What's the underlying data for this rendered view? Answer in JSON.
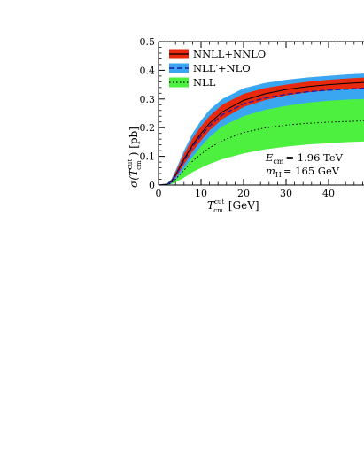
{
  "chart_data": {
    "type": "line",
    "title": "",
    "xlabel": "T_cm^cut [GeV]",
    "xlabel_parts": {
      "symbol": "T",
      "sub": "cm",
      "sup": "cut",
      "unit": "[GeV]"
    },
    "ylabel": "σ(T_cm^cut) [pb]",
    "ylabel_parts": {
      "prefix": "σ(",
      "symbol": "T",
      "sub": "cm",
      "sup": "cut",
      "suffix": ") [pb]"
    },
    "xlim": [
      0,
      49
    ],
    "ylim": [
      0,
      0.5
    ],
    "x_ticks": [
      0,
      10,
      20,
      30,
      40
    ],
    "x_tick_labels": [
      "0",
      "10",
      "20",
      "30",
      "40"
    ],
    "y_ticks": [
      0,
      0.1,
      0.2,
      0.3,
      0.4,
      0.5
    ],
    "y_tick_labels": [
      "0",
      "0.1",
      "0.2",
      "0.3",
      "0.4",
      "0.5"
    ],
    "grid": false,
    "legend_position": "top-left",
    "x": [
      0,
      2,
      3,
      4,
      5,
      6,
      8,
      10,
      12,
      15,
      20,
      25,
      30,
      35,
      40,
      45,
      49
    ],
    "series": [
      {
        "name": "NNLL+NNLO",
        "color": "#e8290e",
        "line_color": "#000000",
        "line_style": "solid",
        "center": [
          0,
          0.003,
          0.012,
          0.035,
          0.062,
          0.09,
          0.14,
          0.18,
          0.215,
          0.255,
          0.295,
          0.318,
          0.333,
          0.343,
          0.35,
          0.355,
          0.358
        ],
        "upper": [
          0,
          0.004,
          0.016,
          0.044,
          0.076,
          0.108,
          0.163,
          0.205,
          0.24,
          0.28,
          0.318,
          0.338,
          0.35,
          0.36,
          0.367,
          0.372,
          0.375
        ],
        "lower": [
          0,
          0.002,
          0.008,
          0.026,
          0.048,
          0.072,
          0.117,
          0.155,
          0.19,
          0.23,
          0.272,
          0.296,
          0.312,
          0.323,
          0.33,
          0.335,
          0.338
        ]
      },
      {
        "name": "NLL′+NLO",
        "color": "#3aa6f2",
        "line_color": "#1a1aa8",
        "line_style": "dashed",
        "center": [
          0,
          0.003,
          0.011,
          0.032,
          0.058,
          0.085,
          0.133,
          0.172,
          0.206,
          0.245,
          0.283,
          0.303,
          0.316,
          0.325,
          0.331,
          0.335,
          0.338
        ],
        "upper": [
          0,
          0.005,
          0.02,
          0.05,
          0.085,
          0.12,
          0.18,
          0.225,
          0.262,
          0.3,
          0.337,
          0.356,
          0.367,
          0.375,
          0.381,
          0.386,
          0.389
        ],
        "lower": [
          0,
          0.001,
          0.005,
          0.018,
          0.036,
          0.058,
          0.098,
          0.135,
          0.167,
          0.205,
          0.24,
          0.262,
          0.276,
          0.287,
          0.294,
          0.298,
          0.3
        ]
      },
      {
        "name": "NLL",
        "color": "#4ef040",
        "line_color": "#000000",
        "line_style": "dotted",
        "center": [
          0,
          0.002,
          0.007,
          0.02,
          0.036,
          0.052,
          0.083,
          0.108,
          0.13,
          0.155,
          0.183,
          0.199,
          0.209,
          0.215,
          0.219,
          0.222,
          0.224
        ],
        "upper": [
          0,
          0.005,
          0.018,
          0.048,
          0.083,
          0.115,
          0.17,
          0.212,
          0.245,
          0.28,
          0.312,
          0.327,
          0.336,
          0.342,
          0.347,
          0.35,
          0.352
        ],
        "lower": [
          0,
          0.001,
          0.003,
          0.009,
          0.018,
          0.026,
          0.045,
          0.06,
          0.073,
          0.09,
          0.11,
          0.124,
          0.134,
          0.141,
          0.146,
          0.15,
          0.152
        ]
      }
    ],
    "annotations": [
      {
        "label": "E",
        "sub": "cm",
        "value": "= 1.96 TeV"
      },
      {
        "label": "m",
        "sub": "H",
        "value": "= 165 GeV"
      }
    ]
  }
}
